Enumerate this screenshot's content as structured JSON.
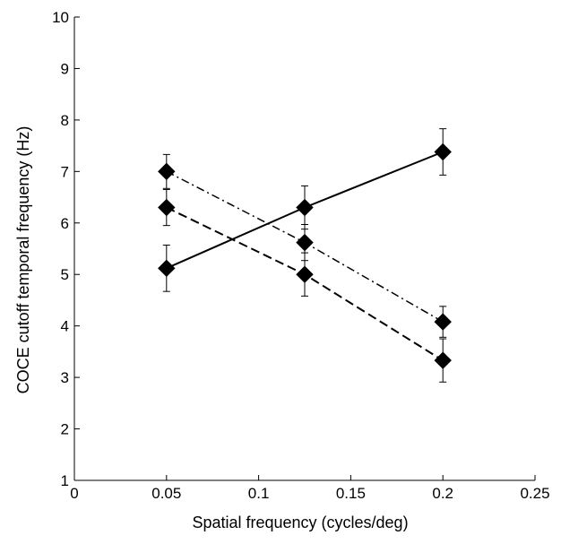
{
  "chart_data": {
    "type": "line",
    "title": "",
    "xlabel": "Spatial frequency (cycles/deg)",
    "ylabel": "COCE cutoff temporal frequency (Hz)",
    "xlim": [
      0,
      0.25
    ],
    "ylim": [
      1,
      10
    ],
    "xticks": [
      0,
      0.05,
      0.1,
      0.15,
      0.2,
      0.25
    ],
    "xtick_labels": [
      "0",
      "0.05",
      "0.1",
      "0.15",
      "0.2",
      "0.25"
    ],
    "yticks": [
      1,
      2,
      3,
      4,
      5,
      6,
      7,
      8,
      9,
      10
    ],
    "ytick_labels": [
      "1",
      "2",
      "3",
      "4",
      "5",
      "6",
      "7",
      "8",
      "9",
      "10"
    ],
    "grid": false,
    "legend": "none",
    "marker": "diamond",
    "color": "#000000",
    "series": [
      {
        "line_style": "solid",
        "x": [
          0.05,
          0.125,
          0.2
        ],
        "y": [
          5.12,
          6.3,
          7.38
        ],
        "err": [
          0.45,
          0.42,
          0.45
        ]
      },
      {
        "line_style": "dashed",
        "x": [
          0.05,
          0.125,
          0.2
        ],
        "y": [
          6.3,
          5.0,
          3.33
        ],
        "err": [
          0.35,
          0.42,
          0.42
        ]
      },
      {
        "line_style": "dashdot",
        "x": [
          0.05,
          0.125,
          0.2
        ],
        "y": [
          7.0,
          5.62,
          4.08
        ],
        "err": [
          0.33,
          0.35,
          0.3
        ]
      }
    ]
  }
}
